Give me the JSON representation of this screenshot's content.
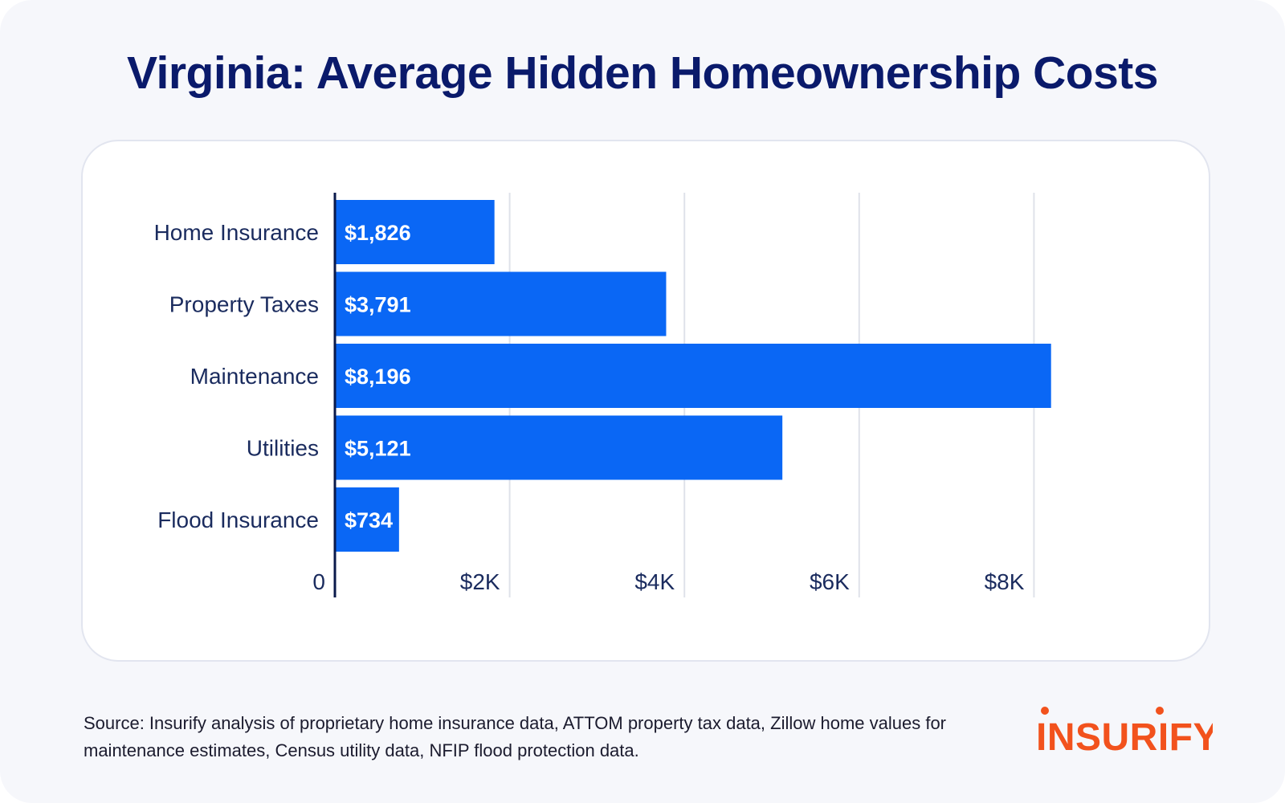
{
  "title": "Virginia: Average Hidden Homeownership Costs",
  "source_text": "Source: Insurify analysis of proprietary home insurance data, ATTOM property tax data, Zillow home values for maintenance estimates, Census utility data, NFIP flood protection data.",
  "logo": {
    "text": "INSURIFY",
    "color": "#f2521d"
  },
  "colors": {
    "bar": "#0a67f5",
    "title": "#0a1a6b",
    "grid": "#dfe2ea",
    "axis": "#0a1a4b"
  },
  "chart_data": {
    "type": "bar",
    "orientation": "horizontal",
    "categories": [
      "Home Insurance",
      "Property Taxes",
      "Maintenance",
      "Utilities",
      "Flood Insurance"
    ],
    "values": [
      1826,
      3791,
      8196,
      5121,
      734
    ],
    "value_labels": [
      "$1,826",
      "$3,791",
      "$8,196",
      "$5,121",
      "$734"
    ],
    "x_ticks": [
      0,
      2000,
      4000,
      6000,
      8000
    ],
    "x_tick_labels": [
      "0",
      "$2K",
      "$4K",
      "$6K",
      "$8K"
    ],
    "xlim": [
      0,
      8196
    ],
    "grid": true,
    "legend": "none"
  }
}
